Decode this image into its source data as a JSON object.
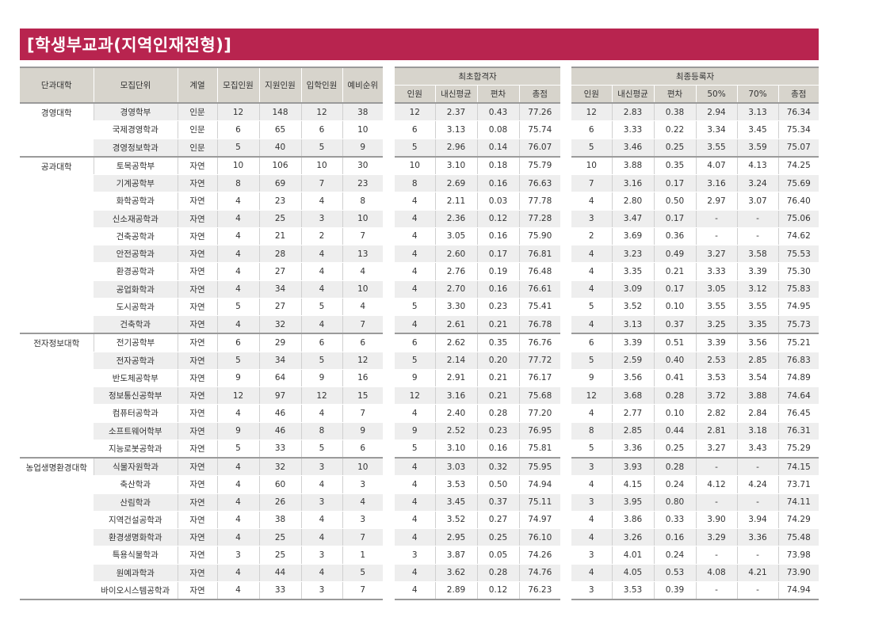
{
  "title": "[학생부교과(지역인재전형)]",
  "headers": {
    "main": [
      "단과대학",
      "모집단위",
      "계열",
      "모집인원",
      "지원인원",
      "입학인원",
      "예비순위"
    ],
    "initial_group": "최초합격자",
    "initial": [
      "인원",
      "내신평균",
      "편차",
      "총점"
    ],
    "final_group": "최종등록자",
    "final": [
      "인원",
      "내신평균",
      "편차",
      "50%",
      "70%",
      "총점"
    ]
  },
  "groups": [
    {
      "college": "경영대학",
      "rows": [
        [
          "경영학부",
          "인문",
          "12",
          "148",
          "12",
          "38",
          "12",
          "2.37",
          "0.43",
          "77.26",
          "12",
          "2.83",
          "0.38",
          "2.94",
          "3.13",
          "76.34"
        ],
        [
          "국제경영학과",
          "인문",
          "6",
          "65",
          "6",
          "10",
          "6",
          "3.13",
          "0.08",
          "75.74",
          "6",
          "3.33",
          "0.22",
          "3.34",
          "3.45",
          "75.34"
        ],
        [
          "경영정보학과",
          "인문",
          "5",
          "40",
          "5",
          "9",
          "5",
          "2.96",
          "0.14",
          "76.07",
          "5",
          "3.46",
          "0.25",
          "3.55",
          "3.59",
          "75.07"
        ]
      ]
    },
    {
      "college": "공과대학",
      "rows": [
        [
          "토목공학부",
          "자연",
          "10",
          "106",
          "10",
          "30",
          "10",
          "3.10",
          "0.18",
          "75.79",
          "10",
          "3.88",
          "0.35",
          "4.07",
          "4.13",
          "74.25"
        ],
        [
          "기계공학부",
          "자연",
          "8",
          "69",
          "7",
          "23",
          "8",
          "2.69",
          "0.16",
          "76.63",
          "7",
          "3.16",
          "0.17",
          "3.16",
          "3.24",
          "75.69"
        ],
        [
          "화학공학과",
          "자연",
          "4",
          "23",
          "4",
          "8",
          "4",
          "2.11",
          "0.03",
          "77.78",
          "4",
          "2.80",
          "0.50",
          "2.97",
          "3.07",
          "76.40"
        ],
        [
          "신소재공학과",
          "자연",
          "4",
          "25",
          "3",
          "10",
          "4",
          "2.36",
          "0.12",
          "77.28",
          "3",
          "3.47",
          "0.17",
          "-",
          "-",
          "75.06"
        ],
        [
          "건축공학과",
          "자연",
          "4",
          "21",
          "2",
          "7",
          "4",
          "3.05",
          "0.16",
          "75.90",
          "2",
          "3.69",
          "0.36",
          "-",
          "-",
          "74.62"
        ],
        [
          "안전공학과",
          "자연",
          "4",
          "28",
          "4",
          "13",
          "4",
          "2.60",
          "0.17",
          "76.81",
          "4",
          "3.23",
          "0.49",
          "3.27",
          "3.58",
          "75.53"
        ],
        [
          "환경공학과",
          "자연",
          "4",
          "27",
          "4",
          "4",
          "4",
          "2.76",
          "0.19",
          "76.48",
          "4",
          "3.35",
          "0.21",
          "3.33",
          "3.39",
          "75.30"
        ],
        [
          "공업화학과",
          "자연",
          "4",
          "34",
          "4",
          "10",
          "4",
          "2.70",
          "0.16",
          "76.61",
          "4",
          "3.09",
          "0.17",
          "3.05",
          "3.12",
          "75.83"
        ],
        [
          "도시공학과",
          "자연",
          "5",
          "27",
          "5",
          "4",
          "5",
          "3.30",
          "0.23",
          "75.41",
          "5",
          "3.52",
          "0.10",
          "3.55",
          "3.55",
          "74.95"
        ],
        [
          "건축학과",
          "자연",
          "4",
          "32",
          "4",
          "7",
          "4",
          "2.61",
          "0.21",
          "76.78",
          "4",
          "3.13",
          "0.37",
          "3.25",
          "3.35",
          "75.73"
        ]
      ]
    },
    {
      "college": "전자정보대학",
      "rows": [
        [
          "전기공학부",
          "자연",
          "6",
          "29",
          "6",
          "6",
          "6",
          "2.62",
          "0.35",
          "76.76",
          "6",
          "3.39",
          "0.51",
          "3.39",
          "3.56",
          "75.21"
        ],
        [
          "전자공학과",
          "자연",
          "5",
          "34",
          "5",
          "12",
          "5",
          "2.14",
          "0.20",
          "77.72",
          "5",
          "2.59",
          "0.40",
          "2.53",
          "2.85",
          "76.83"
        ],
        [
          "반도체공학부",
          "자연",
          "9",
          "64",
          "9",
          "16",
          "9",
          "2.91",
          "0.21",
          "76.17",
          "9",
          "3.56",
          "0.41",
          "3.53",
          "3.54",
          "74.89"
        ],
        [
          "정보통신공학부",
          "자연",
          "12",
          "97",
          "12",
          "15",
          "12",
          "3.16",
          "0.21",
          "75.68",
          "12",
          "3.68",
          "0.28",
          "3.72",
          "3.88",
          "74.64"
        ],
        [
          "컴퓨터공학과",
          "자연",
          "4",
          "46",
          "4",
          "7",
          "4",
          "2.40",
          "0.28",
          "77.20",
          "4",
          "2.77",
          "0.10",
          "2.82",
          "2.84",
          "76.45"
        ],
        [
          "소프트웨어학부",
          "자연",
          "9",
          "46",
          "8",
          "9",
          "9",
          "2.52",
          "0.23",
          "76.95",
          "8",
          "2.85",
          "0.44",
          "2.81",
          "3.18",
          "76.31"
        ],
        [
          "지능로봇공학과",
          "자연",
          "5",
          "33",
          "5",
          "6",
          "5",
          "3.10",
          "0.16",
          "75.81",
          "5",
          "3.36",
          "0.25",
          "3.27",
          "3.43",
          "75.29"
        ]
      ]
    },
    {
      "college": "농업생명환경대학",
      "rows": [
        [
          "식물자원학과",
          "자연",
          "4",
          "32",
          "3",
          "10",
          "4",
          "3.03",
          "0.32",
          "75.95",
          "3",
          "3.93",
          "0.28",
          "-",
          "-",
          "74.15"
        ],
        [
          "축산학과",
          "자연",
          "4",
          "60",
          "4",
          "3",
          "4",
          "3.53",
          "0.50",
          "74.94",
          "4",
          "4.15",
          "0.24",
          "4.12",
          "4.24",
          "73.71"
        ],
        [
          "산림학과",
          "자연",
          "4",
          "26",
          "3",
          "4",
          "4",
          "3.45",
          "0.37",
          "75.11",
          "3",
          "3.95",
          "0.80",
          "-",
          "-",
          "74.11"
        ],
        [
          "지역건설공학과",
          "자연",
          "4",
          "38",
          "4",
          "3",
          "4",
          "3.52",
          "0.27",
          "74.97",
          "4",
          "3.86",
          "0.33",
          "3.90",
          "3.94",
          "74.29"
        ],
        [
          "환경생명화학과",
          "자연",
          "4",
          "25",
          "4",
          "7",
          "4",
          "2.95",
          "0.25",
          "76.10",
          "4",
          "3.26",
          "0.16",
          "3.29",
          "3.36",
          "75.48"
        ],
        [
          "특용식물학과",
          "자연",
          "3",
          "25",
          "3",
          "1",
          "3",
          "3.87",
          "0.05",
          "74.26",
          "3",
          "4.01",
          "0.24",
          "-",
          "-",
          "73.98"
        ],
        [
          "원예과학과",
          "자연",
          "4",
          "44",
          "4",
          "5",
          "4",
          "3.62",
          "0.28",
          "74.76",
          "4",
          "4.05",
          "0.53",
          "4.08",
          "4.21",
          "73.90"
        ],
        [
          "바이오시스템공학과",
          "자연",
          "4",
          "33",
          "3",
          "7",
          "4",
          "2.89",
          "0.12",
          "76.23",
          "3",
          "3.53",
          "0.39",
          "-",
          "-",
          "74.94"
        ]
      ]
    }
  ]
}
